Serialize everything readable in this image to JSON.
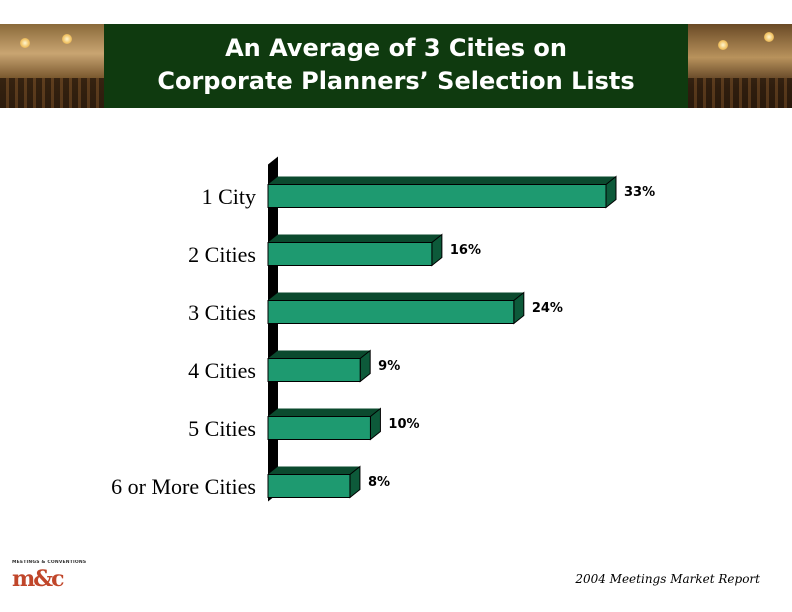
{
  "header": {
    "title_line1": "An Average of 3 Cities on",
    "title_line2": "Corporate Planners’ Selection Lists"
  },
  "chart_data": {
    "type": "bar",
    "orientation": "horizontal",
    "categories": [
      "1 City",
      "2 Cities",
      "3 Cities",
      "4 Cities",
      "5 Cities",
      "6 or More Cities"
    ],
    "values": [
      33,
      16,
      24,
      9,
      10,
      8
    ],
    "value_labels": [
      "33%",
      "16%",
      "24%",
      "9%",
      "10%",
      "8%"
    ],
    "bar_color": "#1e9a70",
    "bar_top_color": "#0b4a2e",
    "wall_color": "#000000",
    "xlim": [
      0,
      33
    ],
    "grid": false,
    "legend": "none"
  },
  "footer": {
    "logo_tagline": "MEETINGS & CONVENTIONS",
    "logo_mark": "m&c",
    "source": "2004 Meetings Market Report"
  },
  "colors": {
    "header_bg": "#0f3a0f",
    "title_text": "#ffffff",
    "logo_accent": "#c0462a"
  }
}
